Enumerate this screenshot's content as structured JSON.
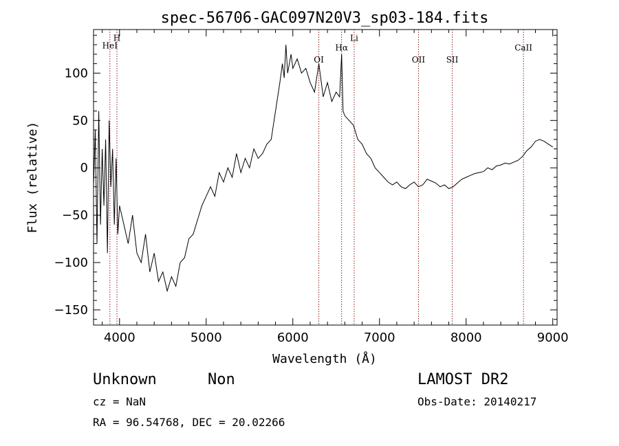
{
  "chart_data": {
    "type": "line",
    "title": "spec-56706-GAC097N20V3_sp03-184.fits",
    "xlabel": "Wavelength (Å)",
    "ylabel": "Flux (relative)",
    "xlim": [
      3700,
      9050
    ],
    "ylim": [
      -166,
      146
    ],
    "xticks": [
      4000,
      5000,
      6000,
      7000,
      8000,
      9000
    ],
    "yticks": [
      -150,
      -100,
      -50,
      0,
      50,
      100
    ],
    "grid": false,
    "line_color": "#000000",
    "marker_color": "#8b1a1a",
    "spectral_lines": [
      {
        "label": "HeI",
        "x": 3889,
        "label_y": 126
      },
      {
        "label": "H",
        "x": 3970,
        "label_y": 134
      },
      {
        "label": "OI",
        "x": 6300,
        "label_y": 111
      },
      {
        "label": "Hα",
        "x": 6563,
        "label_y": 124
      },
      {
        "label": "Li",
        "x": 6708,
        "label_y": 134
      },
      {
        "label": "OII",
        "x": 7450,
        "label_y": 111
      },
      {
        "label": "SII",
        "x": 7840,
        "label_y": 111
      },
      {
        "label": "CaII",
        "x": 8662,
        "label_y": 124
      }
    ],
    "series": [
      {
        "x": [
          3700,
          3720,
          3740,
          3760,
          3780,
          3800,
          3820,
          3840,
          3860,
          3880,
          3900,
          3920,
          3940,
          3960,
          3980,
          4000,
          4050,
          4100,
          4150,
          4200,
          4250,
          4300,
          4350,
          4400,
          4450,
          4500,
          4550,
          4600,
          4650,
          4700,
          4750,
          4800,
          4850,
          4900,
          4950,
          5000,
          5050,
          5100,
          5150,
          5200,
          5250,
          5300,
          5350,
          5400,
          5450,
          5500,
          5550,
          5600,
          5650,
          5700,
          5750,
          5800,
          5850,
          5880,
          5900,
          5920,
          5940,
          5960,
          5980,
          6000,
          6050,
          6100,
          6150,
          6200,
          6250,
          6300,
          6350,
          6400,
          6450,
          6500,
          6540,
          6563,
          6580,
          6600,
          6650,
          6700,
          6750,
          6800,
          6850,
          6900,
          6950,
          7000,
          7050,
          7100,
          7150,
          7200,
          7250,
          7300,
          7350,
          7400,
          7450,
          7500,
          7550,
          7600,
          7650,
          7700,
          7750,
          7800,
          7850,
          7900,
          7950,
          8000,
          8050,
          8100,
          8150,
          8200,
          8250,
          8300,
          8350,
          8400,
          8450,
          8500,
          8550,
          8600,
          8650,
          8700,
          8750,
          8800,
          8850,
          8900,
          8950,
          9000
        ],
        "y": [
          -20,
          40,
          -80,
          60,
          -60,
          20,
          -40,
          30,
          -90,
          50,
          -20,
          20,
          -60,
          10,
          -70,
          -40,
          -60,
          -80,
          -50,
          -90,
          -100,
          -70,
          -110,
          -90,
          -120,
          -110,
          -130,
          -115,
          -125,
          -100,
          -95,
          -75,
          -70,
          -55,
          -40,
          -30,
          -20,
          -30,
          -5,
          -15,
          0,
          -10,
          15,
          -5,
          10,
          0,
          20,
          10,
          15,
          25,
          30,
          60,
          90,
          110,
          95,
          130,
          100,
          110,
          120,
          105,
          115,
          100,
          105,
          90,
          80,
          110,
          75,
          90,
          70,
          80,
          75,
          120,
          60,
          55,
          50,
          45,
          30,
          25,
          15,
          10,
          0,
          -5,
          -10,
          -15,
          -18,
          -15,
          -20,
          -22,
          -18,
          -15,
          -20,
          -18,
          -12,
          -14,
          -16,
          -20,
          -18,
          -22,
          -20,
          -16,
          -12,
          -10,
          -8,
          -6,
          -5,
          -4,
          0,
          -2,
          2,
          3,
          5,
          4,
          6,
          8,
          12,
          18,
          22,
          28,
          30,
          28,
          25,
          22
        ]
      }
    ]
  },
  "info": {
    "class": "Unknown",
    "subclass": "Non",
    "survey": "LAMOST DR2",
    "cz": "cz = NaN",
    "obs_date": "Obs-Date: 20140217",
    "coords": "RA =  96.54768, DEC =  20.02266"
  }
}
